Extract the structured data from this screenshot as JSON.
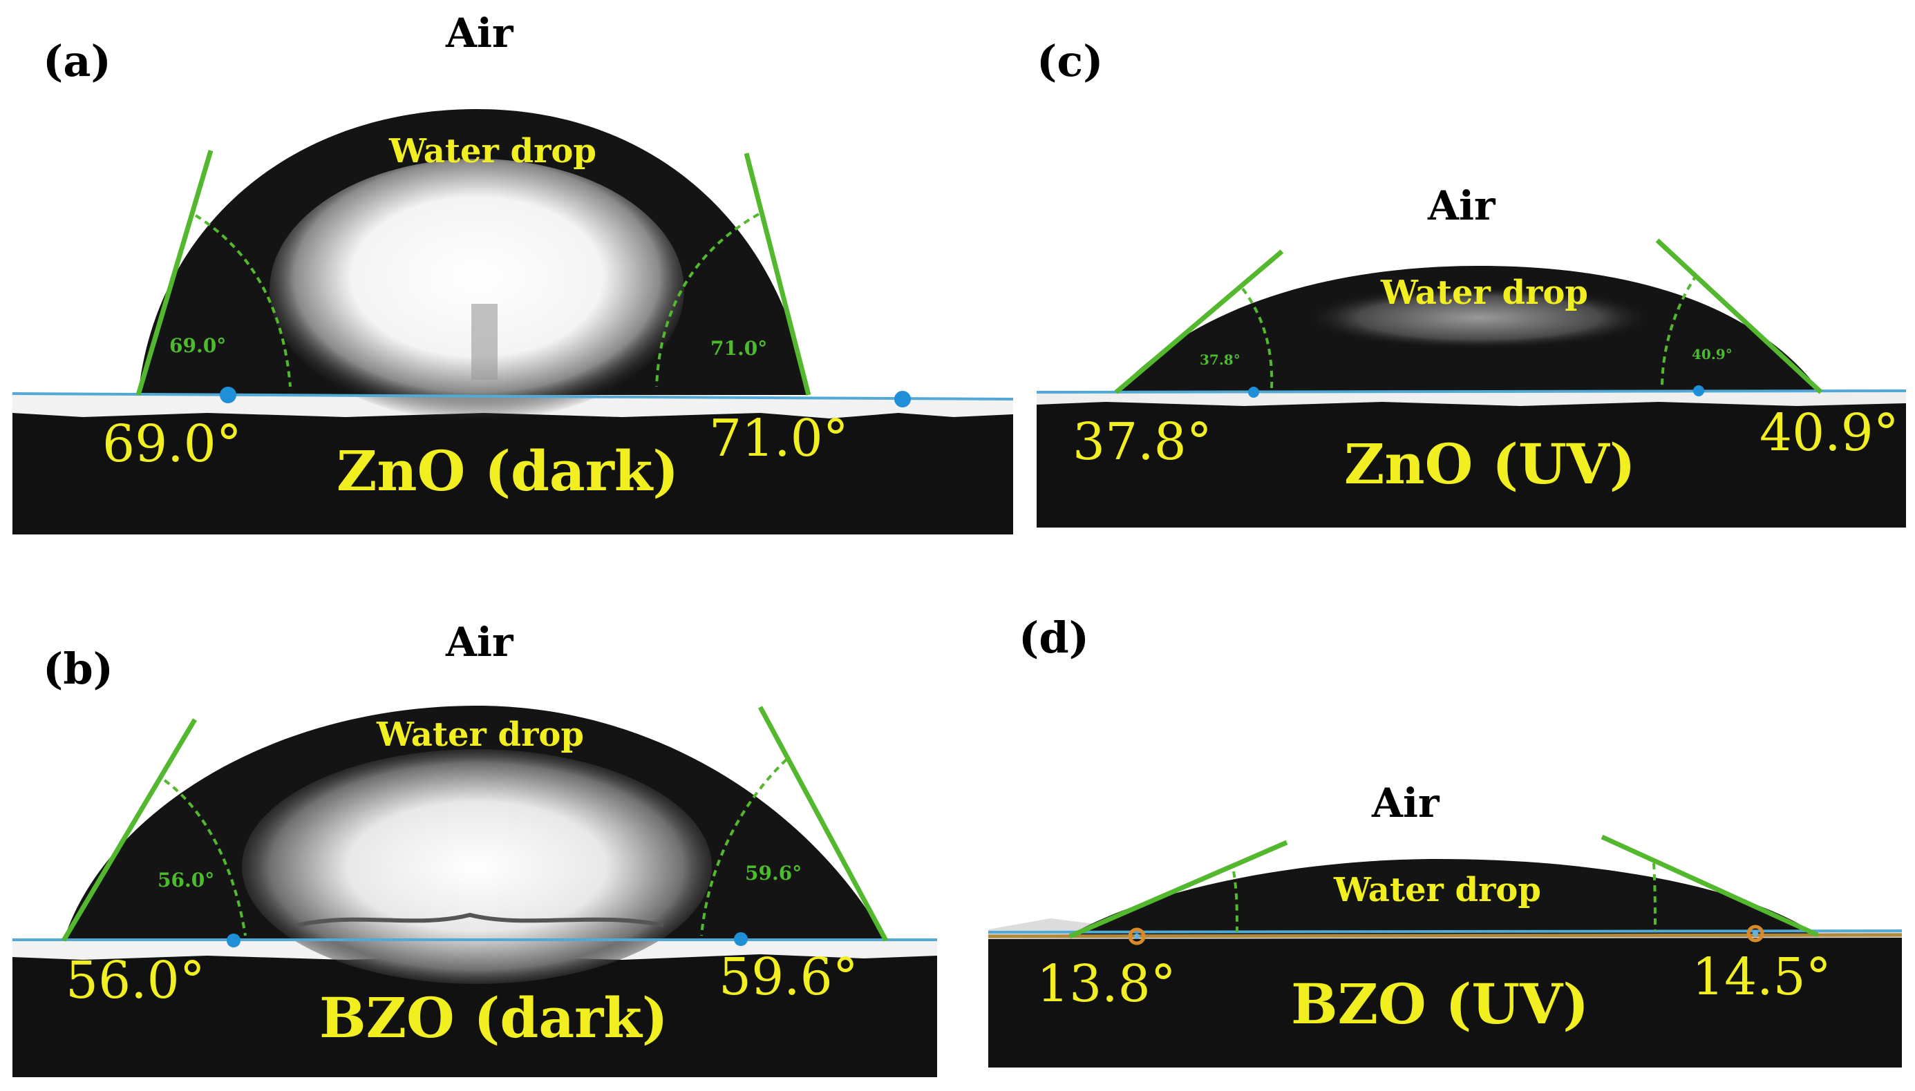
{
  "panels": [
    {
      "label": "(a)",
      "medium_label": "Air",
      "drop_label": "Water drop",
      "sample_label": "ZnO (dark)",
      "left_angle": "69.0°",
      "right_angle": "71.0°",
      "left_angle_small": "69.0°",
      "right_angle_small": "71.0°"
    },
    {
      "label": "(b)",
      "medium_label": "Air",
      "drop_label": "Water drop",
      "sample_label": "BZO (dark)",
      "left_angle": "56.0°",
      "right_angle": "59.6°",
      "left_angle_small": "56.0°",
      "right_angle_small": "59.6°"
    },
    {
      "label": "(c)",
      "medium_label": "Air",
      "drop_label": "Water drop",
      "sample_label": "ZnO (UV)",
      "left_angle": "37.8°",
      "right_angle": "40.9°",
      "left_angle_small": "37.8°",
      "right_angle_small": "40.9°"
    },
    {
      "label": "(d)",
      "medium_label": "Air",
      "drop_label": "Water drop",
      "sample_label": "BZO (UV)",
      "left_angle": "13.8°",
      "right_angle": "14.5°"
    }
  ],
  "colors": {
    "tangent_line": "#53b82e",
    "baseline": "#52a9d6",
    "annotation_text": "#f2ef20",
    "drop_and_substrate": "#111111"
  }
}
